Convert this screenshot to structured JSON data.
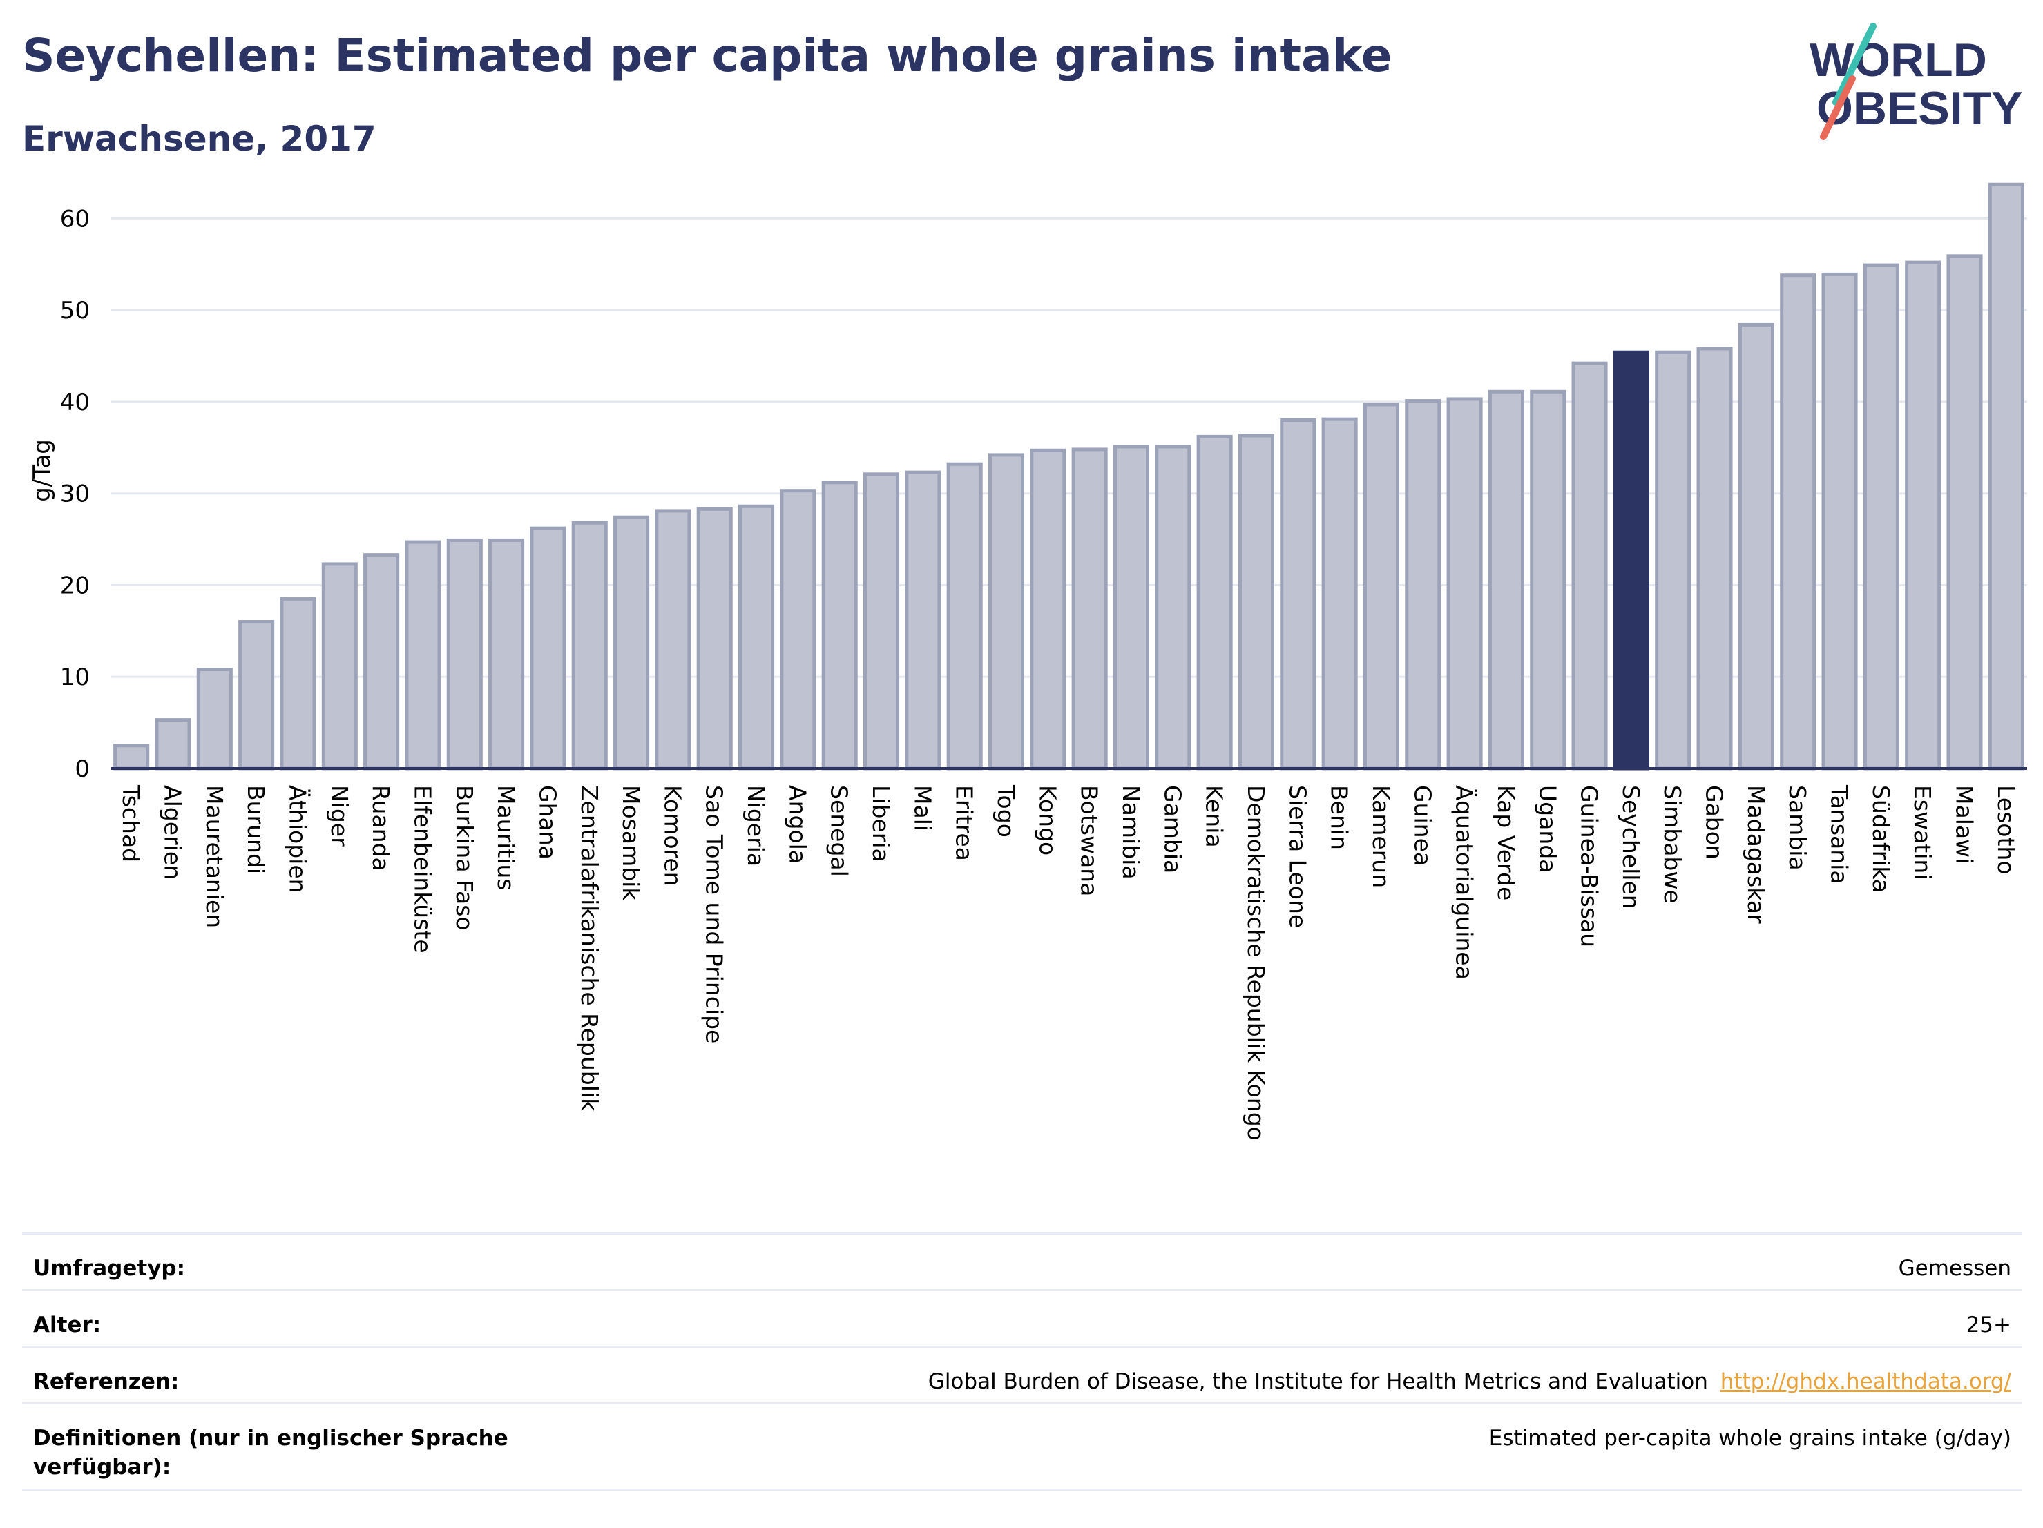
{
  "title": "Seychellen: Estimated per capita whole grains intake",
  "subtitle": "Erwachsene, 2017",
  "logo": {
    "line1": "WORLD",
    "line2": "OBESITY"
  },
  "colors": {
    "bar": "#bfc3d1",
    "bar_border": "#9ca2b8",
    "highlight": "#2b3463",
    "title": "#2b3463",
    "link": "#e8a23a"
  },
  "chart_data": {
    "type": "bar",
    "ylabel": "g/Tag",
    "ylim": [
      0,
      65
    ],
    "yticks": [
      0,
      10,
      20,
      30,
      40,
      50,
      60
    ],
    "highlight": "Seychellen",
    "categories": [
      "Tschad",
      "Algerien",
      "Mauretanien",
      "Burundi",
      "Äthiopien",
      "Niger",
      "Ruanda",
      "Elfenbeinküste",
      "Burkina Faso",
      "Mauritius",
      "Ghana",
      "Zentralafrikanische Republik",
      "Mosambik",
      "Komoren",
      "Sao Tome und Principe",
      "Nigeria",
      "Angola",
      "Senegal",
      "Liberia",
      "Mali",
      "Eritrea",
      "Togo",
      "Kongo",
      "Botswana",
      "Namibia",
      "Gambia",
      "Kenia",
      "Demokratische Republik Kongo",
      "Sierra Leone",
      "Benin",
      "Kamerun",
      "Guinea",
      "Äquatorialguinea",
      "Kap Verde",
      "Uganda",
      "Guinea-Bissau",
      "Seychellen",
      "Simbabwe",
      "Gabon",
      "Madagaskar",
      "Sambia",
      "Tansania",
      "Südafrika",
      "Eswatini",
      "Malawi",
      "Lesotho"
    ],
    "values": [
      2.5,
      5.3,
      10.8,
      16.0,
      18.5,
      22.3,
      23.3,
      24.7,
      24.9,
      24.9,
      26.2,
      26.8,
      27.4,
      28.1,
      28.3,
      28.6,
      30.3,
      31.2,
      32.1,
      32.3,
      33.2,
      34.2,
      34.7,
      34.8,
      35.1,
      35.1,
      36.2,
      36.3,
      38.0,
      38.1,
      39.7,
      40.1,
      40.3,
      41.1,
      41.1,
      44.2,
      45.4,
      45.4,
      45.8,
      48.4,
      53.8,
      53.9,
      54.9,
      55.2,
      55.9,
      63.7
    ]
  },
  "info": [
    {
      "label": "Umfragetyp:",
      "value": "Gemessen"
    },
    {
      "label": "Alter:",
      "value": "25+"
    },
    {
      "label": "Referenzen:",
      "value": "Global Burden of Disease, the Institute for Health Metrics and Evaluation",
      "link": "http://ghdx.healthdata.org/"
    },
    {
      "label": "Definitionen (nur in englischer Sprache verfügbar):",
      "value": "Estimated per-capita whole grains intake (g/day)"
    }
  ]
}
